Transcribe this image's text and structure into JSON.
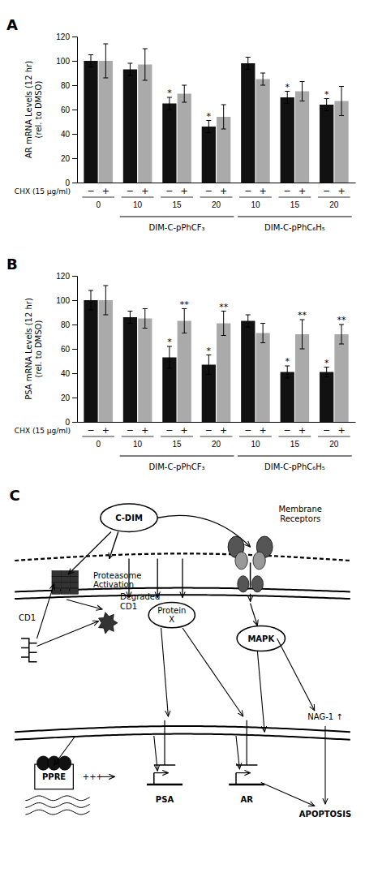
{
  "chart_data": [
    {
      "type": "bar",
      "title": "A",
      "ylabel": "AR mRNA Levels (12 hr)\n(rel. to DMSO)",
      "categories": [
        "0",
        "10",
        "15",
        "20",
        "10",
        "15",
        "20"
      ],
      "series": [
        {
          "name": "−",
          "color": "#111111",
          "values": [
            100,
            93,
            65,
            46,
            98,
            70,
            64
          ],
          "errors": [
            5,
            5,
            5,
            5,
            5,
            5,
            5
          ],
          "annotations": [
            null,
            null,
            "*",
            "*",
            null,
            "*",
            "*"
          ]
        },
        {
          "name": "+",
          "color": "#aaaaaa",
          "values": [
            100,
            97,
            73,
            54,
            85,
            75,
            67
          ],
          "errors": [
            14,
            13,
            7,
            10,
            5,
            8,
            12
          ]
        }
      ],
      "ylim": [
        0,
        120
      ],
      "yticks": [
        0,
        20,
        40,
        60,
        80,
        100,
        120
      ],
      "annotations": [
        "CHX (15 µg/ml)"
      ],
      "x_groups": [
        {
          "label": "DIM-C-pPhCF₃",
          "span": [
            1,
            3
          ]
        },
        {
          "label": "DIM-C-pPhC₆H₅",
          "span": [
            4,
            6
          ]
        }
      ]
    },
    {
      "type": "bar",
      "title": "B",
      "ylabel": "PSA mRNA Levels (12 hr)\n(rel. to DMSO)",
      "categories": [
        "0",
        "10",
        "15",
        "20",
        "10",
        "15",
        "20"
      ],
      "series": [
        {
          "name": "−",
          "color": "#111111",
          "values": [
            100,
            86,
            53,
            47,
            83,
            41,
            41
          ],
          "errors": [
            8,
            5,
            9,
            8,
            5,
            5,
            4
          ],
          "annotations": [
            null,
            null,
            "*",
            "*",
            null,
            "*",
            "*"
          ]
        },
        {
          "name": "+",
          "color": "#aaaaaa",
          "values": [
            100,
            85,
            83,
            81,
            73,
            72,
            72
          ],
          "errors": [
            12,
            8,
            10,
            10,
            8,
            12,
            8
          ],
          "annotations": [
            null,
            null,
            "**",
            "**",
            null,
            "**",
            "**"
          ]
        }
      ],
      "ylim": [
        0,
        120
      ],
      "yticks": [
        0,
        20,
        40,
        60,
        80,
        100,
        120
      ],
      "annotations": [
        "CHX (15 µg/ml)"
      ],
      "x_groups": [
        {
          "label": "DIM-C-pPhCF₃",
          "span": [
            1,
            3
          ]
        },
        {
          "label": "DIM-C-pPhC₆H₅",
          "span": [
            4,
            6
          ]
        }
      ]
    },
    {
      "type": "diagram",
      "title": "C",
      "annotations": [
        "C-DIM",
        "Membrane\nReceptors",
        "Proteasome\nActivation",
        "Degraded\nCD1",
        "CD1",
        "Protein\nX",
        "MAPK",
        "PPRE",
        "+++",
        "PSA",
        "AR",
        "NAG-1 ↑",
        "APOPTOSIS"
      ]
    }
  ]
}
